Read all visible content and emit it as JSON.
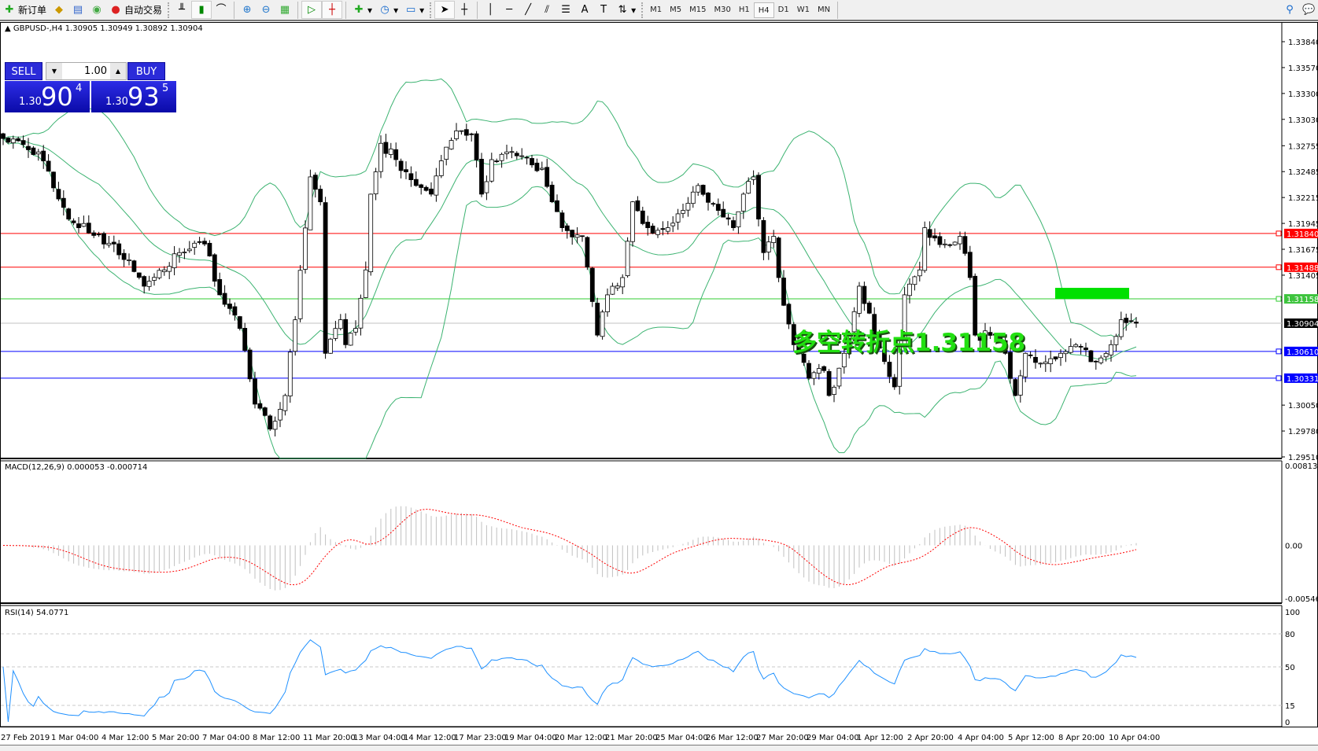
{
  "toolbar": {
    "new_order": "新订单",
    "auto_trading": "自动交易",
    "timeframes": [
      "M1",
      "M5",
      "M15",
      "M30",
      "H1",
      "H4",
      "D1",
      "W1",
      "MN"
    ],
    "active_timeframe": "H4"
  },
  "chart": {
    "header": "GBPUSD-,H4  1.30905 1.30949 1.30892 1.30904",
    "trade_panel": {
      "sell_label": "SELL",
      "buy_label": "BUY",
      "lot": "1.00",
      "sell_big": "1.30",
      "sell_main": "90",
      "sell_pip": "4",
      "buy_big": "1.30",
      "buy_main": "93",
      "buy_pip": "5"
    },
    "annotation_text": "多空转折点1.31158",
    "price_axis_labels": [
      "1.33840",
      "1.33570",
      "1.33300",
      "1.33030",
      "1.32755",
      "1.32485",
      "1.32215",
      "1.31945",
      "1.31675",
      "1.31405",
      "1.30050",
      "1.29780",
      "1.29510"
    ],
    "levels": [
      {
        "price": "1.31840",
        "color": "#ff0000"
      },
      {
        "price": "1.31488",
        "color": "#ff0000"
      },
      {
        "price": "1.31158",
        "color": "#32cd32"
      },
      {
        "price": "1.30904",
        "color": "#000000"
      },
      {
        "price": "1.30610",
        "color": "#0000ff"
      },
      {
        "price": "1.30331",
        "color": "#0000ff"
      }
    ],
    "close_path": [
      [
        0,
        1.3283
      ],
      [
        7,
        1.3269
      ],
      [
        13,
        1.3199
      ],
      [
        22,
        1.3173
      ],
      [
        28,
        1.3129
      ],
      [
        35,
        1.3164
      ],
      [
        40,
        1.3173
      ],
      [
        43,
        1.312
      ],
      [
        47,
        1.3085
      ],
      [
        50,
        1.3006
      ],
      [
        53,
        1.298
      ],
      [
        56,
        1.3015
      ],
      [
        58,
        1.3094
      ],
      [
        61,
        1.3243
      ],
      [
        63,
        1.3217
      ],
      [
        64,
        1.3059
      ],
      [
        67,
        1.3094
      ],
      [
        68,
        1.3068
      ],
      [
        70,
        1.3085
      ],
      [
        72,
        1.3146
      ],
      [
        73,
        1.3225
      ],
      [
        75,
        1.3278
      ],
      [
        78,
        1.3261
      ],
      [
        82,
        1.3234
      ],
      [
        85,
        1.3225
      ],
      [
        88,
        1.3274
      ],
      [
        90,
        1.3291
      ],
      [
        93,
        1.3287
      ],
      [
        95,
        1.3225
      ],
      [
        97,
        1.3261
      ],
      [
        100,
        1.3269
      ],
      [
        103,
        1.3265
      ],
      [
        107,
        1.3252
      ],
      [
        109,
        1.3217
      ],
      [
        111,
        1.319
      ],
      [
        115,
        1.3181
      ],
      [
        117,
        1.3113
      ],
      [
        118,
        1.3078
      ],
      [
        120,
        1.312
      ],
      [
        123,
        1.3138
      ],
      [
        125,
        1.3217
      ],
      [
        128,
        1.319
      ],
      [
        132,
        1.319
      ],
      [
        135,
        1.3208
      ],
      [
        138,
        1.3234
      ],
      [
        142,
        1.3208
      ],
      [
        145,
        1.319
      ],
      [
        147,
        1.3225
      ],
      [
        149,
        1.3243
      ],
      [
        151,
        1.3164
      ],
      [
        153,
        1.3181
      ],
      [
        154,
        1.3138
      ],
      [
        157,
        1.3068
      ],
      [
        160,
        1.3033
      ],
      [
        163,
        1.3041
      ],
      [
        164,
        1.3015
      ],
      [
        167,
        1.3059
      ],
      [
        170,
        1.3129
      ],
      [
        173,
        1.3078
      ],
      [
        177,
        1.3024
      ],
      [
        179,
        1.312
      ],
      [
        182,
        1.3146
      ],
      [
        183,
        1.319
      ],
      [
        187,
        1.3173
      ],
      [
        190,
        1.3181
      ],
      [
        192,
        1.3138
      ],
      [
        193,
        1.3078
      ],
      [
        197,
        1.3078
      ],
      [
        199,
        1.3059
      ],
      [
        201,
        1.3015
      ],
      [
        203,
        1.3059
      ],
      [
        207,
        1.305
      ],
      [
        210,
        1.3059
      ],
      [
        213,
        1.3068
      ],
      [
        217,
        1.305
      ],
      [
        220,
        1.3068
      ],
      [
        222,
        1.3094
      ],
      [
        225,
        1.30904
      ]
    ],
    "colors": {
      "bands": "#3cb371",
      "macd_hist": "#c0c0c0",
      "macd_signal": "#ff0000",
      "rsi": "#1e90ff",
      "pivot_box": "#00e000"
    }
  },
  "macd": {
    "label": "MACD(12,26,9) 0.000053 -0.000714",
    "axis": [
      "0.008137",
      "0.00",
      "-0.005466"
    ]
  },
  "rsi": {
    "label": "RSI(14) 54.0771",
    "axis": [
      "100",
      "80",
      "50",
      "15",
      "0"
    ]
  },
  "time_axis": [
    "27 Feb 2019",
    "1 Mar 04:00",
    "4 Mar 12:00",
    "5 Mar 20:00",
    "7 Mar 04:00",
    "8 Mar 12:00",
    "11 Mar 20:00",
    "13 Mar 04:00",
    "14 Mar 12:00",
    "17 Mar 23:00",
    "19 Mar 04:00",
    "20 Mar 12:00",
    "21 Mar 20:00",
    "25 Mar 04:00",
    "26 Mar 12:00",
    "27 Mar 20:00",
    "29 Mar 04:00",
    "1 Apr 12:00",
    "2 Apr 20:00",
    "4 Apr 04:00",
    "5 Apr 12:00",
    "8 Apr 20:00",
    "10 Apr 04:00"
  ]
}
